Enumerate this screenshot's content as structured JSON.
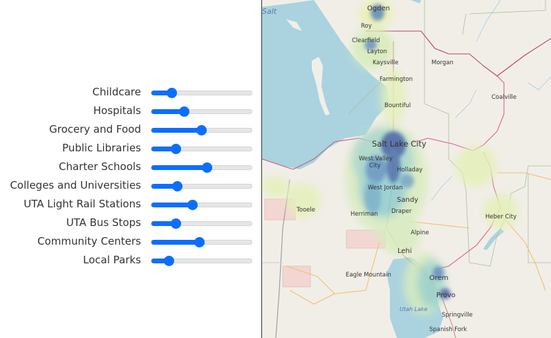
{
  "sliders": [
    {
      "label": "Childcare",
      "value": 18
    },
    {
      "label": "Hospitals",
      "value": 31
    },
    {
      "label": "Grocery and Food",
      "value": 50
    },
    {
      "label": "Public Libraries",
      "value": 22
    },
    {
      "label": "Charter Schools",
      "value": 56
    },
    {
      "label": "Colleges and Universities",
      "value": 24
    },
    {
      "label": "UTA Light Rail Stations",
      "value": 40
    },
    {
      "label": "UTA Bus Stops",
      "value": 22
    },
    {
      "label": "Community Centers",
      "value": 48
    },
    {
      "label": "Local Parks",
      "value": 15
    }
  ],
  "slider_range": [
    0,
    100
  ],
  "accent_color": "#0d6efd",
  "map": {
    "labels": {
      "salt": "Salt",
      "ogden": "Ogden",
      "roy": "Roy",
      "clearfield": "Clearfield",
      "layton": "Layton",
      "kaysville": "Kaysville",
      "morgan": "Morgan",
      "farmington": "Farmington",
      "bountiful": "Bountiful",
      "coalville": "Coalville",
      "slc": "Salt Lake City",
      "westvalley": "West Valley",
      "city": "City",
      "holladay": "Holladay",
      "westjordan": "West Jordan",
      "sandy": "Sandy",
      "tooele": "Tooele",
      "herriman": "Herriman",
      "draper": "Draper",
      "heber": "Heber City",
      "alpine": "Alpine",
      "lehi": "Lehi",
      "eagle": "Eagle Mountain",
      "orem": "Orem",
      "provo": "Provo",
      "utahlake": "Utah Lake",
      "springville": "Springville",
      "spanishfork": "Spanish Fork"
    }
  }
}
